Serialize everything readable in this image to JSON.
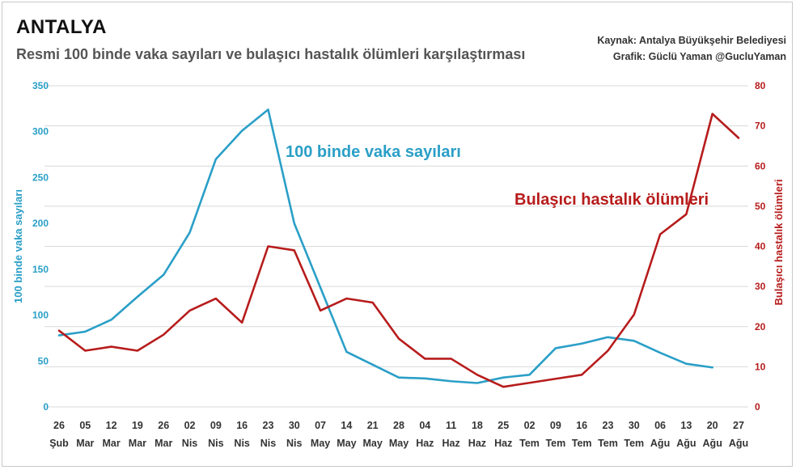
{
  "header": {
    "title": "ANTALYA",
    "subtitle": "Resmi 100 binde vaka sayıları ve bulaşıcı hastalık ölümleri karşılaştırması",
    "source": "Kaynak: Antalya Büyükşehir Belediyesi",
    "credit": "Grafik: Güclü Yaman @GucluYaman"
  },
  "colors": {
    "cases": "#2a9fc7",
    "deaths": "#b71c1c",
    "grid": "#d9d9d9",
    "axis_text": "#333333"
  },
  "chart_data": {
    "type": "line",
    "categories": [
      "26 Şub",
      "05 Mar",
      "12 Mar",
      "19 Mar",
      "26 Mar",
      "02 Nis",
      "09 Nis",
      "16 Nis",
      "23 Nis",
      "30 Nis",
      "07 May",
      "14 May",
      "21 May",
      "28 May",
      "04 Haz",
      "11 Haz",
      "18 Haz",
      "25 Haz",
      "02 Tem",
      "09 Tem",
      "16 Tem",
      "23 Tem",
      "30 Tem",
      "06 Ağu",
      "13 Ağu",
      "20 Ağu",
      "27 Ağu"
    ],
    "x_tick_labels": [
      [
        "26",
        "Şub"
      ],
      [
        "05",
        "Mar"
      ],
      [
        "12",
        "Mar"
      ],
      [
        "19",
        "Mar"
      ],
      [
        "26",
        "Mar"
      ],
      [
        "02",
        "Nis"
      ],
      [
        "09",
        "Nis"
      ],
      [
        "16",
        "Nis"
      ],
      [
        "23",
        "Nis"
      ],
      [
        "30",
        "Nis"
      ],
      [
        "07",
        "May"
      ],
      [
        "14",
        "May"
      ],
      [
        "21",
        "May"
      ],
      [
        "28",
        "May"
      ],
      [
        "04",
        "Haz"
      ],
      [
        "11",
        "Haz"
      ],
      [
        "18",
        "Haz"
      ],
      [
        "25",
        "Haz"
      ],
      [
        "02",
        "Tem"
      ],
      [
        "09",
        "Tem"
      ],
      [
        "16",
        "Tem"
      ],
      [
        "23",
        "Tem"
      ],
      [
        "30",
        "Tem"
      ],
      [
        "06",
        "Ağu"
      ],
      [
        "13",
        "Ağu"
      ],
      [
        "20",
        "Ağu"
      ],
      [
        "27",
        "Ağu"
      ]
    ],
    "series": [
      {
        "name": "100 binde vaka sayıları",
        "axis": "left",
        "values": [
          78,
          82,
          95,
          120,
          144,
          190,
          270,
          301,
          324,
          200,
          130,
          60,
          46,
          32,
          31,
          28,
          26,
          32,
          35,
          64,
          69,
          76,
          72,
          59,
          47,
          43,
          null
        ]
      },
      {
        "name": "Bulaşıcı hastalık ölümleri",
        "axis": "right",
        "values": [
          19,
          14,
          15,
          14,
          18,
          24,
          27,
          21,
          40,
          39,
          24,
          27,
          26,
          17,
          12,
          12,
          8,
          5,
          6,
          7,
          8,
          14,
          23,
          43,
          48,
          73,
          67
        ]
      }
    ],
    "y_left": {
      "label": "100 binde vaka sayıları",
      "min": 0,
      "max": 350,
      "ticks": [
        0,
        50,
        100,
        150,
        200,
        250,
        300,
        350
      ]
    },
    "y_right": {
      "label": "Bulaşıcı hastalık ölümleri",
      "min": 0,
      "max": 80,
      "ticks": [
        0,
        10,
        20,
        30,
        40,
        50,
        60,
        70,
        80
      ]
    },
    "annotations": [
      {
        "text": "100 binde vaka sayıları",
        "series": 0
      },
      {
        "text": "Bulaşıcı hastalık ölümleri",
        "series": 1
      }
    ],
    "grid": true
  }
}
